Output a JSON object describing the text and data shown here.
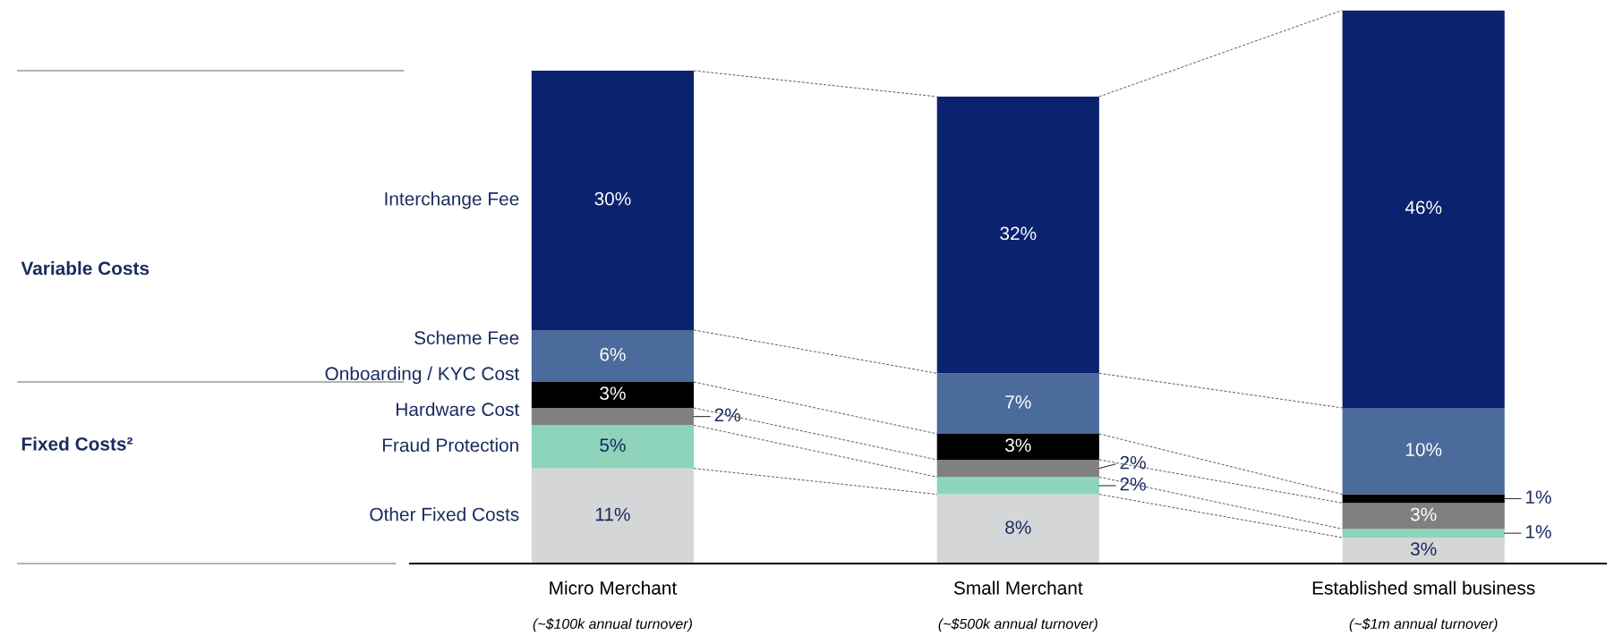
{
  "chart_data": {
    "type": "bar",
    "stacked": true,
    "categories": [
      "Micro Merchant\n(~$100k annual turnover)",
      "Small Merchant\n(~$500k annual turnover)",
      "Established small business\n(~$1m annual turnover)"
    ],
    "series": [
      {
        "name": "Other Fixed Costs",
        "color": "#d5d6d8",
        "values": [
          11,
          8,
          3
        ],
        "value_labels": [
          "11%",
          "8%",
          "3%"
        ]
      },
      {
        "name": "Fraud Protection",
        "color": "#8dd4bb",
        "values": [
          5,
          2,
          1
        ],
        "value_labels": [
          "5%",
          "2%",
          "1%"
        ]
      },
      {
        "name": "Hardware Cost",
        "color": "#808080",
        "values": [
          2,
          2,
          3
        ],
        "value_labels": [
          "2%",
          "2%",
          "3%"
        ]
      },
      {
        "name": "Onboarding / KYC Cost",
        "color": "#000000",
        "values": [
          3,
          3,
          1
        ],
        "value_labels": [
          "3%",
          "3%",
          "1%"
        ]
      },
      {
        "name": "Scheme Fee",
        "color": "#4a6b9b",
        "values": [
          6,
          7,
          10
        ],
        "value_labels": [
          "6%",
          "7%",
          "10%"
        ]
      },
      {
        "name": "Interchange Fee",
        "color": "#0b226f",
        "values": [
          30,
          32,
          46
        ],
        "value_labels": [
          "30%",
          "32%",
          "46%"
        ]
      }
    ],
    "annotations": [
      "Fixed Costs²",
      "Variable Costs"
    ]
  }
}
